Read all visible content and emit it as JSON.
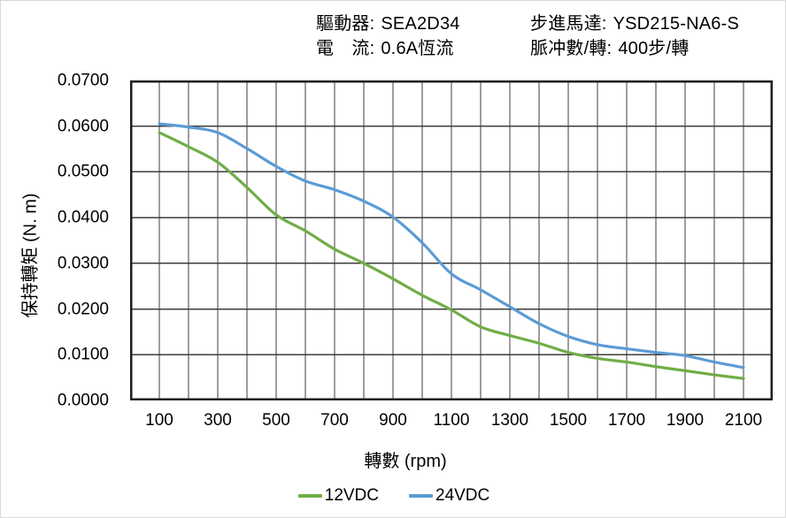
{
  "header": {
    "driver": {
      "label": "驅動器:",
      "value": "SEA2D34"
    },
    "current": {
      "label": "電　流:",
      "value": "0.6A恆流"
    },
    "motor": {
      "label": "步進馬達:",
      "value": "YSD215-NA6-S"
    },
    "pulses_per_rev": {
      "label": "脈冲數/轉:",
      "value": "400步/轉"
    }
  },
  "chart_data": {
    "type": "line",
    "title": "",
    "xlabel": "轉數 (rpm)",
    "ylabel": "保持轉矩 (N. m)",
    "x": [
      100,
      200,
      300,
      400,
      500,
      600,
      700,
      800,
      900,
      1000,
      1100,
      1200,
      1300,
      1400,
      1500,
      1600,
      1700,
      1800,
      1900,
      2000,
      2100
    ],
    "series": [
      {
        "name": "12VDC",
        "color": "#70AD47",
        "values": [
          0.0586,
          0.0555,
          0.0521,
          0.0466,
          0.0406,
          0.0371,
          0.0331,
          0.03,
          0.0266,
          0.023,
          0.0198,
          0.0161,
          0.0142,
          0.0125,
          0.0105,
          0.0092,
          0.0084,
          0.0074,
          0.0065,
          0.0056,
          0.0048
        ]
      },
      {
        "name": "24VDC",
        "color": "#5B9BD5",
        "values": [
          0.0605,
          0.0598,
          0.0586,
          0.0551,
          0.0512,
          0.048,
          0.0461,
          0.0436,
          0.0401,
          0.0345,
          0.0277,
          0.0242,
          0.0205,
          0.0168,
          0.014,
          0.0122,
          0.0113,
          0.0105,
          0.0098,
          0.0084,
          0.0072
        ]
      }
    ],
    "xlim": [
      0,
      2200
    ],
    "ylim": [
      0,
      0.07
    ],
    "x_tick_labels": [
      "100",
      "300",
      "500",
      "700",
      "900",
      "1100",
      "1300",
      "1500",
      "1700",
      "1900",
      "2100"
    ],
    "y_tick_labels": [
      "0.0700",
      "0.0600",
      "0.0500",
      "0.0400",
      "0.0300",
      "0.0200",
      "0.0100",
      "0.0000"
    ],
    "grid": {
      "x_step_rpm": 100,
      "y_step": 0.01,
      "on": true
    },
    "legend_position": "bottom",
    "legend_entries": [
      "12VDC",
      "24VDC"
    ]
  },
  "colors": {
    "grid_line": "#3d3d3d",
    "plot_border": "#1f1f1f",
    "series_12vdc": "#70AD47",
    "series_24vdc": "#5B9BD5",
    "frame": "#d9d9d9",
    "text": "#000000"
  }
}
